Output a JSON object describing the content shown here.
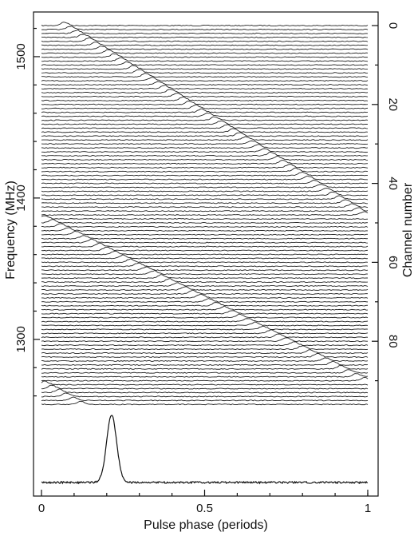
{
  "chart_data": {
    "type": "line",
    "title": "",
    "xlabel": "Pulse phase (periods)",
    "ylabel_left": "Frequency (MHz)",
    "ylabel_right": "Channel number",
    "xlim": [
      0,
      1
    ],
    "x_ticks": [
      0,
      0.5,
      1
    ],
    "x_tick_labels": [
      "0",
      "0.5",
      "1"
    ],
    "freq_ticks": [
      1500,
      1400,
      1300
    ],
    "freq_tick_labels": [
      "1500",
      "1400",
      "1300"
    ],
    "channel_ticks": [
      0,
      20,
      40,
      60,
      80
    ],
    "channel_tick_labels": [
      "0",
      "20",
      "40",
      "60",
      "80"
    ],
    "channel_count": 97,
    "channel_freq_mhz": [
      1522,
      1254
    ],
    "pulse_track": [
      {
        "channel_range": [
          0,
          48
        ],
        "phase_range": [
          0.07,
          0.99
        ]
      },
      {
        "channel_range": [
          49,
          90
        ],
        "phase_range": [
          0.01,
          0.99
        ]
      },
      {
        "channel_range": [
          91,
          96
        ],
        "phase_range": [
          0.01,
          0.12
        ]
      }
    ],
    "integrated_profile": {
      "peak_phase": 0.215,
      "width_periods": 0.03
    },
    "grid": false,
    "legend": "none"
  }
}
